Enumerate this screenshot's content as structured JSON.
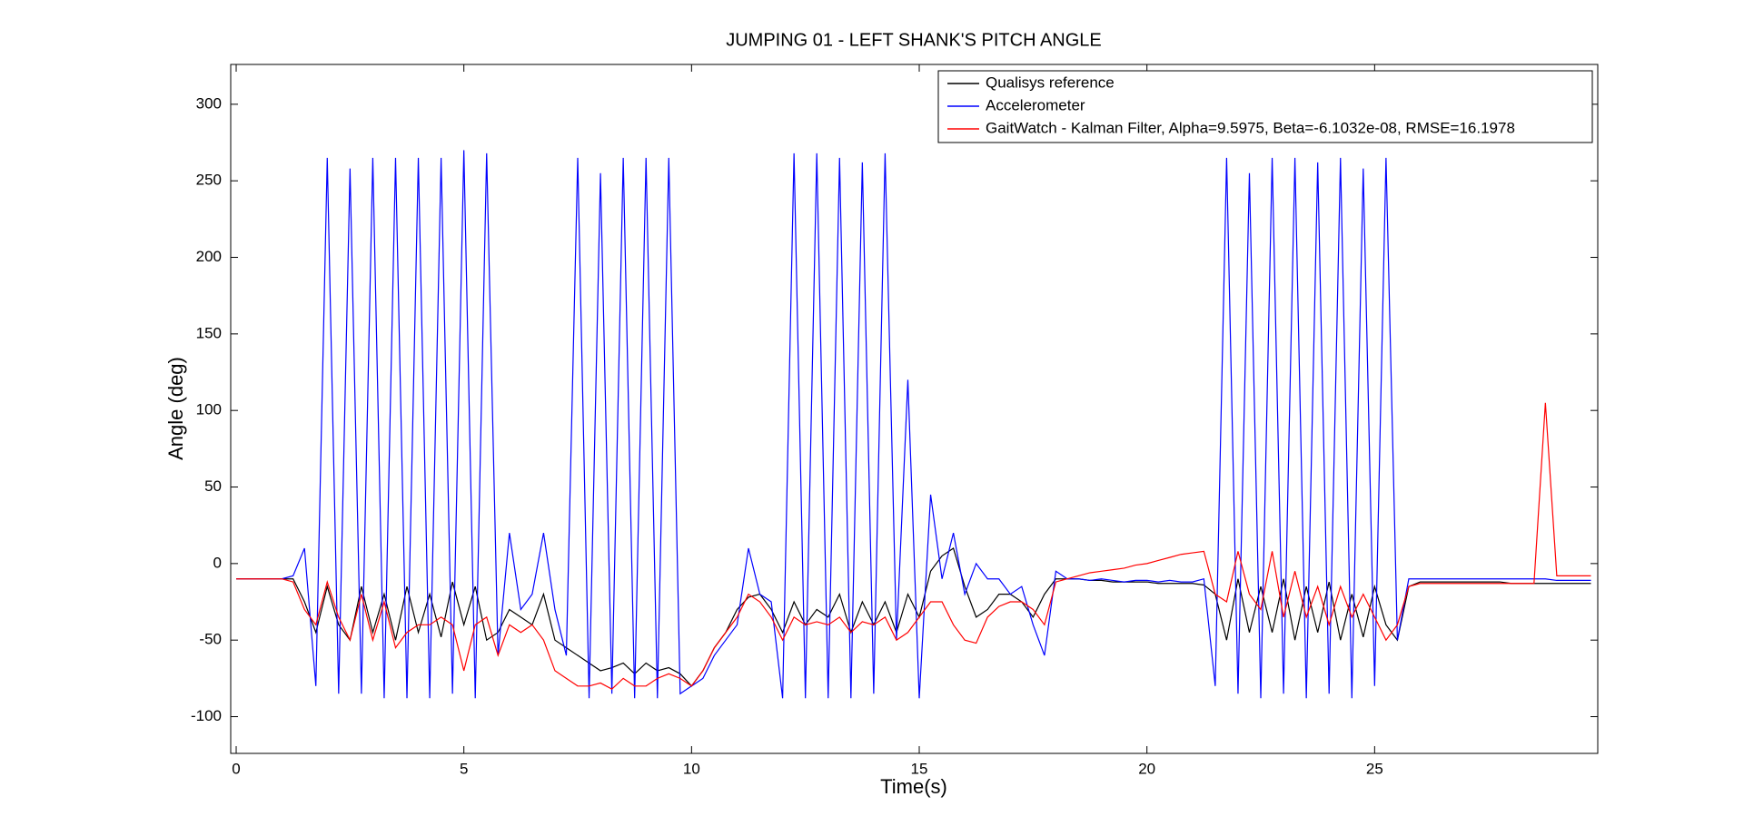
{
  "chart_data": {
    "type": "line",
    "title": "JUMPING 01 - LEFT SHANK'S PITCH ANGLE",
    "x_label": "Time(s)",
    "y_label": "Angle (deg)",
    "legend": "top-right",
    "xlim": [
      -0.12,
      29.9
    ],
    "ylim": [
      -124,
      326
    ],
    "xticks": [
      0,
      5,
      10,
      15,
      20,
      25
    ],
    "yticks": [
      -100,
      -50,
      0,
      50,
      100,
      150,
      200,
      250,
      300
    ],
    "x": [
      0,
      0.25,
      0.5,
      0.75,
      1,
      1.25,
      1.5,
      1.75,
      2,
      2.25,
      2.5,
      2.75,
      3,
      3.25,
      3.5,
      3.75,
      4,
      4.25,
      4.5,
      4.75,
      5,
      5.25,
      5.5,
      5.75,
      6,
      6.25,
      6.5,
      6.75,
      7,
      7.25,
      7.5,
      7.75,
      8,
      8.25,
      8.5,
      8.75,
      9,
      9.25,
      9.5,
      9.75,
      10,
      10.25,
      10.5,
      10.75,
      11,
      11.25,
      11.5,
      11.75,
      12,
      12.25,
      12.5,
      12.75,
      13,
      13.25,
      13.5,
      13.75,
      14,
      14.25,
      14.5,
      14.75,
      15,
      15.25,
      15.5,
      15.75,
      16,
      16.25,
      16.5,
      16.75,
      17,
      17.25,
      17.5,
      17.75,
      18,
      18.25,
      18.5,
      18.75,
      19,
      19.25,
      19.5,
      19.75,
      20,
      20.25,
      20.5,
      20.75,
      21,
      21.25,
      21.5,
      21.75,
      22,
      22.25,
      22.5,
      22.75,
      23,
      23.25,
      23.5,
      23.75,
      24,
      24.25,
      24.5,
      24.75,
      25,
      25.25,
      25.5,
      25.75,
      26,
      26.25,
      26.5,
      26.75,
      27,
      27.25,
      27.5,
      27.75,
      28,
      28.25,
      28.5,
      28.75,
      29,
      29.25,
      29.5,
      29.75
    ],
    "series": [
      {
        "name": "Qualisys reference",
        "color": "#000000",
        "values": [
          -10,
          -10,
          -10,
          -10,
          -10,
          -10,
          -25,
          -45,
          -15,
          -40,
          -50,
          -15,
          -45,
          -20,
          -50,
          -15,
          -45,
          -20,
          -48,
          -12,
          -40,
          -15,
          -50,
          -45,
          -30,
          -35,
          -40,
          -20,
          -50,
          -55,
          -60,
          -65,
          -70,
          -68,
          -65,
          -72,
          -65,
          -70,
          -68,
          -72,
          -80,
          -70,
          -55,
          -45,
          -30,
          -22,
          -20,
          -30,
          -45,
          -25,
          -40,
          -30,
          -35,
          -20,
          -45,
          -25,
          -40,
          -25,
          -45,
          -20,
          -35,
          -5,
          5,
          10,
          -15,
          -35,
          -30,
          -20,
          -20,
          -25,
          -35,
          -20,
          -10,
          -10,
          -10,
          -11,
          -11,
          -12,
          -12,
          -12,
          -12,
          -13,
          -13,
          -13,
          -13,
          -14,
          -20,
          -50,
          -10,
          -45,
          -15,
          -45,
          -10,
          -50,
          -15,
          -45,
          -12,
          -50,
          -20,
          -48,
          -15,
          -40,
          -50,
          -15,
          -12,
          -12,
          -12,
          -12,
          -12,
          -12,
          -12,
          -12,
          -13,
          -13,
          -13,
          -13,
          -13,
          -13,
          -13,
          -13
        ]
      },
      {
        "name": "Accelerometer",
        "color": "#0000ff",
        "values": [
          -10,
          -10,
          -10,
          -10,
          -10,
          -8,
          10,
          -80,
          265,
          -85,
          258,
          -85,
          265,
          -88,
          265,
          -88,
          265,
          -88,
          265,
          -85,
          270,
          -88,
          268,
          -60,
          20,
          -30,
          -20,
          20,
          -30,
          -60,
          265,
          -88,
          255,
          -85,
          265,
          -88,
          265,
          -88,
          265,
          -85,
          -80,
          -75,
          -60,
          -50,
          -40,
          10,
          -20,
          -25,
          -88,
          268,
          -88,
          268,
          -88,
          265,
          -88,
          262,
          -85,
          268,
          -50,
          120,
          -88,
          45,
          -10,
          20,
          -20,
          0,
          -10,
          -10,
          -20,
          -15,
          -40,
          -60,
          -5,
          -10,
          -10,
          -11,
          -10,
          -11,
          -12,
          -11,
          -11,
          -12,
          -11,
          -12,
          -12,
          -10,
          -80,
          265,
          -85,
          255,
          -88,
          265,
          -85,
          265,
          -88,
          262,
          -85,
          265,
          -88,
          258,
          -80,
          265,
          -50,
          -10,
          -10,
          -10,
          -10,
          -10,
          -10,
          -10,
          -10,
          -10,
          -10,
          -10,
          -10,
          -10,
          -11,
          -11,
          -11,
          -11
        ]
      },
      {
        "name": "GaitWatch - Kalman Filter, Alpha=9.5975, Beta=-6.1032e-08, RMSE=16.1978",
        "color": "#ff0000",
        "values": [
          -10,
          -10,
          -10,
          -10,
          -10,
          -12,
          -30,
          -40,
          -12,
          -35,
          -50,
          -20,
          -50,
          -25,
          -55,
          -45,
          -40,
          -40,
          -35,
          -40,
          -70,
          -40,
          -35,
          -60,
          -40,
          -45,
          -40,
          -50,
          -70,
          -75,
          -80,
          -80,
          -78,
          -82,
          -75,
          -80,
          -80,
          -75,
          -72,
          -75,
          -80,
          -70,
          -55,
          -45,
          -35,
          -20,
          -25,
          -35,
          -50,
          -35,
          -40,
          -38,
          -40,
          -35,
          -45,
          -38,
          -40,
          -35,
          -50,
          -45,
          -35,
          -25,
          -25,
          -40,
          -50,
          -52,
          -35,
          -28,
          -25,
          -25,
          -30,
          -40,
          -12,
          -10,
          -8,
          -6,
          -5,
          -4,
          -3,
          -1,
          0,
          2,
          4,
          6,
          7,
          8,
          -20,
          -25,
          8,
          -20,
          -30,
          8,
          -35,
          -5,
          -35,
          -15,
          -40,
          -15,
          -35,
          -20,
          -35,
          -50,
          -40,
          -15,
          -13,
          -13,
          -13,
          -13,
          -13,
          -13,
          -13,
          -13,
          -13,
          -13,
          -13,
          105,
          -8,
          -8,
          -8,
          -8
        ]
      }
    ]
  }
}
